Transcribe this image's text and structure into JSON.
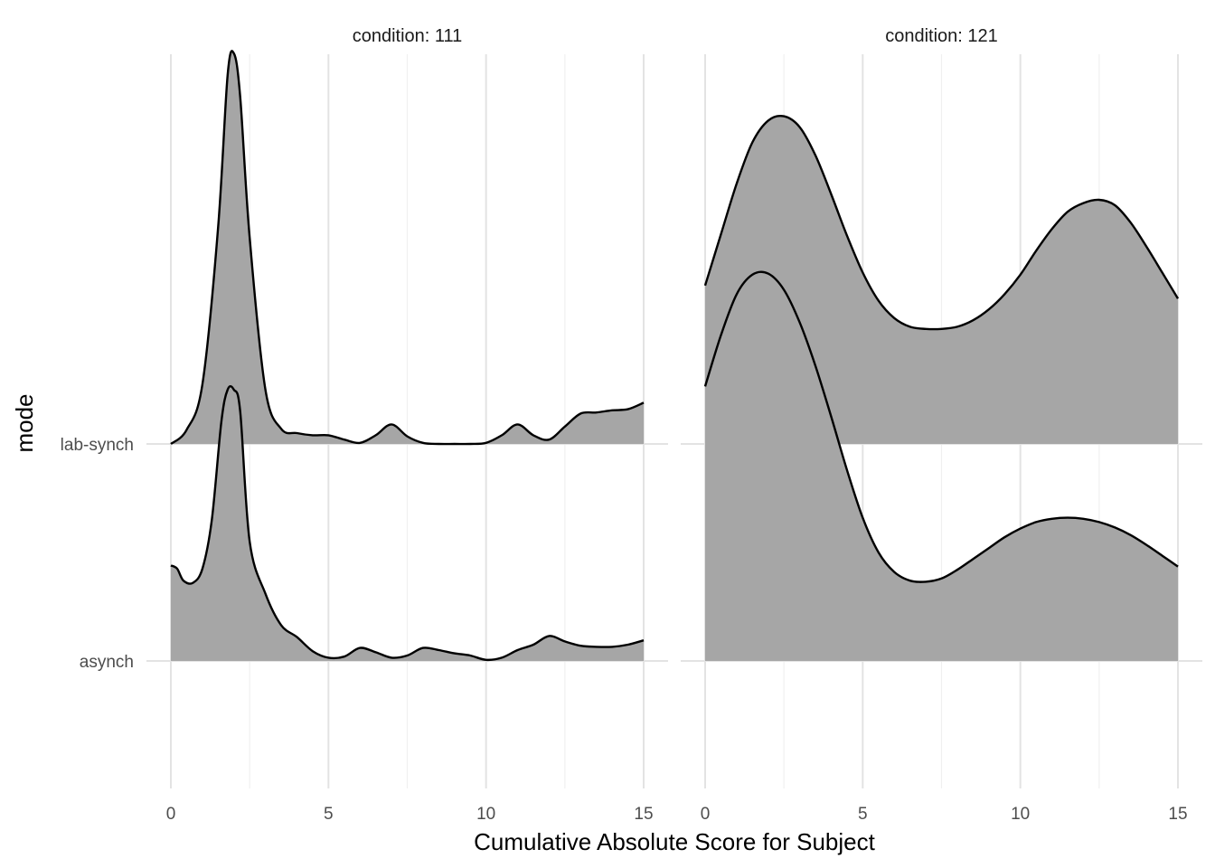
{
  "chart_data": {
    "type": "area",
    "subtype": "ridgeline-density",
    "xlabel": "Cumulative Absolute Score for Subject",
    "ylabel": "mode",
    "xlim": [
      0,
      15
    ],
    "x_ticks": [
      0,
      5,
      10,
      15
    ],
    "y_categories": [
      "lab-synch",
      "asynch"
    ],
    "fill_color": "#a6a6a6",
    "line_color": "#000000",
    "grid": true,
    "panels": [
      {
        "strip": "condition: 111",
        "series": [
          {
            "category": "lab-synch",
            "x": [
              0,
              0.5,
              1,
              1.5,
              1.8,
              2,
              2.2,
              2.5,
              3,
              3.5,
              4,
              4.5,
              5,
              5.5,
              6,
              6.5,
              7,
              7.5,
              8,
              8.5,
              9,
              9.5,
              10,
              10.5,
              11,
              11.5,
              12,
              12.5,
              13,
              13.5,
              14,
              14.5,
              15
            ],
            "density": [
              0,
              0.13,
              0.55,
              2.0,
              3.4,
              3.6,
              3.2,
              1.9,
              0.5,
              0.14,
              0.1,
              0.08,
              0.08,
              0.04,
              0.01,
              0.08,
              0.18,
              0.07,
              0.01,
              0.0,
              0.0,
              0.0,
              0.01,
              0.08,
              0.18,
              0.08,
              0.04,
              0.16,
              0.28,
              0.29,
              0.31,
              0.32,
              0.38
            ]
          },
          {
            "category": "asynch",
            "x": [
              0,
              0.2,
              0.4,
              0.7,
              1,
              1.3,
              1.6,
              1.8,
              2,
              2.2,
              2.5,
              3,
              3.5,
              4,
              4.5,
              5,
              5.5,
              6,
              6.5,
              7,
              7.5,
              8,
              8.5,
              9,
              9.5,
              10,
              10.5,
              11,
              11.5,
              12,
              12.5,
              13,
              13.5,
              14,
              14.5,
              15
            ],
            "density": [
              0.88,
              0.85,
              0.74,
              0.72,
              0.85,
              1.3,
              2.2,
              2.5,
              2.5,
              2.3,
              1.1,
              0.62,
              0.33,
              0.22,
              0.09,
              0.03,
              0.04,
              0.12,
              0.08,
              0.03,
              0.05,
              0.12,
              0.1,
              0.07,
              0.05,
              0.01,
              0.03,
              0.1,
              0.15,
              0.23,
              0.18,
              0.14,
              0.13,
              0.13,
              0.15,
              0.19
            ]
          }
        ]
      },
      {
        "strip": "condition: 121",
        "series": [
          {
            "category": "lab-synch",
            "x": [
              0,
              0.5,
              1,
              1.5,
              2,
              2.5,
              3,
              3.5,
              4,
              4.5,
              5,
              5.5,
              6,
              6.5,
              7,
              7.5,
              8,
              8.5,
              9,
              9.5,
              10,
              10.5,
              11,
              11.5,
              12,
              12.5,
              13,
              13.5,
              14,
              14.5,
              15
            ],
            "density": [
              1.46,
              1.93,
              2.4,
              2.78,
              2.98,
              3.02,
              2.92,
              2.66,
              2.3,
              1.92,
              1.58,
              1.32,
              1.16,
              1.08,
              1.06,
              1.06,
              1.08,
              1.14,
              1.24,
              1.38,
              1.56,
              1.78,
              1.98,
              2.14,
              2.22,
              2.25,
              2.2,
              2.04,
              1.82,
              1.58,
              1.34
            ]
          },
          {
            "category": "asynch",
            "x": [
              0,
              0.5,
              1,
              1.5,
              2,
              2.5,
              3,
              3.5,
              4,
              4.5,
              5,
              5.5,
              6,
              6.5,
              7,
              7.5,
              8,
              8.5,
              9,
              9.5,
              10,
              10.5,
              11,
              11.5,
              12,
              12.5,
              13,
              13.5,
              14,
              14.5,
              15
            ],
            "density": [
              2.53,
              3.0,
              3.38,
              3.56,
              3.57,
              3.42,
              3.12,
              2.72,
              2.25,
              1.76,
              1.32,
              1.0,
              0.82,
              0.74,
              0.73,
              0.76,
              0.84,
              0.94,
              1.04,
              1.14,
              1.22,
              1.28,
              1.31,
              1.32,
              1.31,
              1.28,
              1.23,
              1.16,
              1.07,
              0.97,
              0.87
            ]
          }
        ]
      }
    ]
  }
}
